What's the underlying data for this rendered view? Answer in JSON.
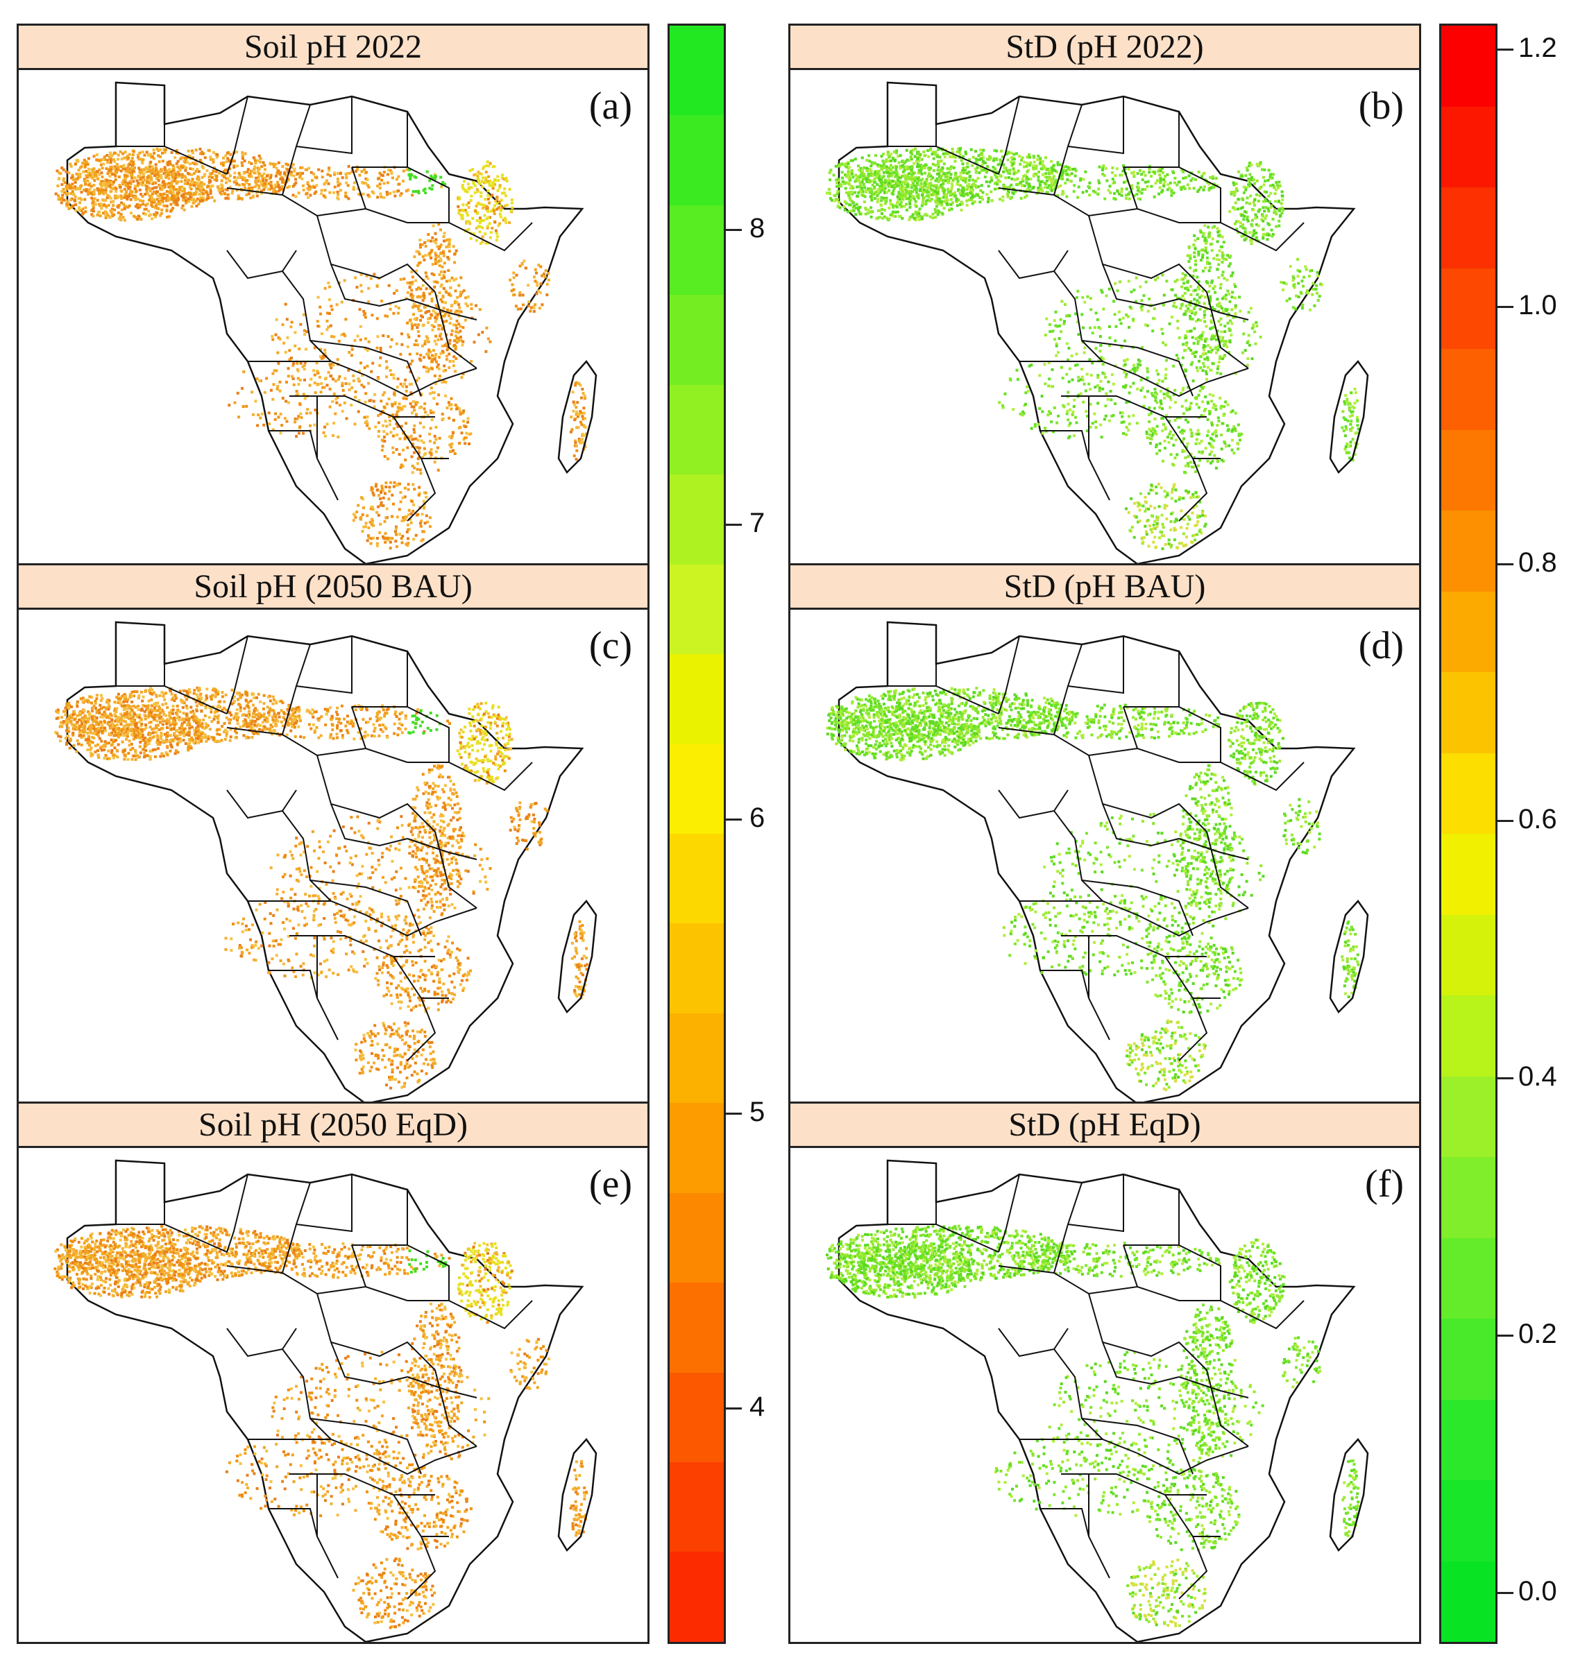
{
  "panels": [
    {
      "title": "Soil pH  2022",
      "label": "(a)",
      "scheme": "ph"
    },
    {
      "title": "StD (pH 2022)",
      "label": "(b)",
      "scheme": "std"
    },
    {
      "title": "Soil pH (2050 BAU)",
      "label": "(c)",
      "scheme": "ph"
    },
    {
      "title": "StD (pH BAU)",
      "label": "(d)",
      "scheme": "std"
    },
    {
      "title": "Soil pH (2050 EqD)",
      "label": "(e)",
      "scheme": "ph"
    },
    {
      "title": "StD  (pH EqD)",
      "label": "(f)",
      "scheme": "std"
    }
  ],
  "colorbar_ph": {
    "ticks": [
      "8",
      "7",
      "6",
      "5",
      "4"
    ],
    "tick_values": [
      8,
      7,
      6,
      5,
      4
    ],
    "range": [
      3.2,
      8.7
    ],
    "colors_top_to_bottom": [
      "#22e822",
      "#3cea22",
      "#58ec22",
      "#74ee22",
      "#90f022",
      "#aef222",
      "#ccf422",
      "#eaf200",
      "#fcee00",
      "#fcd800",
      "#fcc400",
      "#fcb000",
      "#fc9c00",
      "#fc8800",
      "#fc7000",
      "#fc5800",
      "#fc4000",
      "#fc2c00"
    ]
  },
  "colorbar_std": {
    "ticks": [
      "1.2",
      "1.0",
      "0.8",
      "0.6",
      "0.4",
      "0.2",
      "0.0"
    ],
    "tick_values": [
      1.2,
      1.0,
      0.8,
      0.6,
      0.4,
      0.2,
      0.0
    ],
    "range": [
      -0.04,
      1.22
    ],
    "colors_top_to_bottom": [
      "#fc0000",
      "#fc1800",
      "#fc3000",
      "#fc4800",
      "#fc6000",
      "#fc7800",
      "#fc9000",
      "#fcaa00",
      "#fcc400",
      "#fcde00",
      "#f0f000",
      "#d4f20a",
      "#b8f41a",
      "#9cf02a",
      "#80ee2a",
      "#64ec2a",
      "#48ea2a",
      "#2ce82a",
      "#18e628",
      "#08e424"
    ]
  },
  "colors": {
    "ph_dots": [
      "#f2a420",
      "#f4b030",
      "#f09010",
      "#f6c040",
      "#e8801a"
    ],
    "ph_green": "#44dd22",
    "ph_yellow": "#e8e020",
    "std_dots": [
      "#7ee62a",
      "#98ea30",
      "#64e024",
      "#b0ee3c",
      "#5cd820"
    ],
    "std_yellow": "#d8e040"
  }
}
